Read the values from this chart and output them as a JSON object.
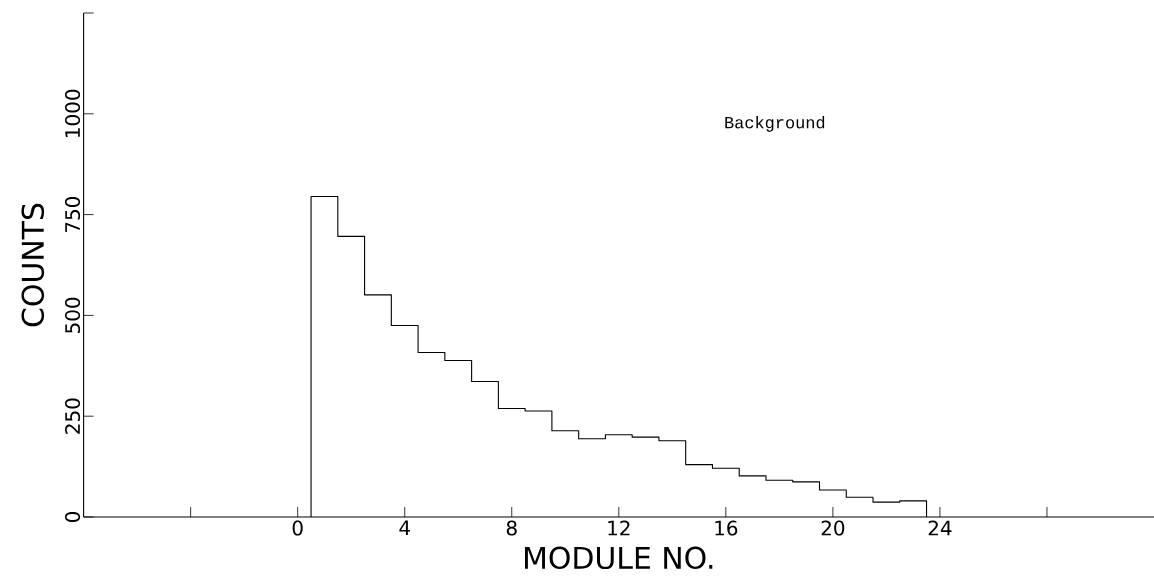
{
  "chart_data": {
    "type": "histogram",
    "xlabel": "MODULE NO.",
    "ylabel": "COUNTS",
    "annotations": [
      "Background"
    ],
    "bins": [
      0.5,
      1.5,
      2.5,
      3.5,
      4.5,
      5.5,
      6.5,
      7.5,
      8.5,
      9.5,
      10.5,
      11.5,
      12.5,
      13.5,
      14.5,
      15.5,
      16.5,
      17.5,
      18.5,
      19.5,
      20.5,
      21.5,
      22.5,
      23.5
    ],
    "values": [
      795,
      696,
      551,
      475,
      408,
      388,
      336,
      269,
      263,
      214,
      194,
      204,
      198,
      189,
      130,
      121,
      102,
      91,
      87,
      67,
      49,
      37,
      40
    ],
    "color": "#000000",
    "xlim": [
      -8,
      32
    ],
    "ylim": [
      0,
      1250
    ],
    "xticks": [
      {
        "value": -4,
        "label": null
      },
      0,
      4,
      8,
      12,
      16,
      20,
      24,
      {
        "value": 28,
        "label": null
      }
    ],
    "yticks": [
      0,
      250,
      500,
      750,
      1000,
      {
        "value": 1250,
        "label": null
      }
    ]
  }
}
